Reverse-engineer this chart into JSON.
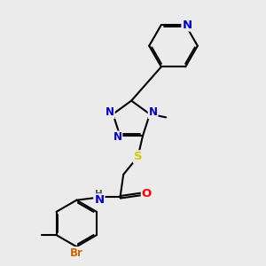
{
  "background_color": "#ebebeb",
  "bond_color": "#000000",
  "bond_width": 1.5,
  "atom_colors": {
    "N": "#0000cc",
    "O": "#ff0000",
    "S": "#cccc00",
    "Br": "#cc6600",
    "C": "#000000",
    "H": "#555555"
  },
  "font_size": 8.5,
  "fig_size": [
    3.0,
    3.0
  ],
  "dpi": 100
}
